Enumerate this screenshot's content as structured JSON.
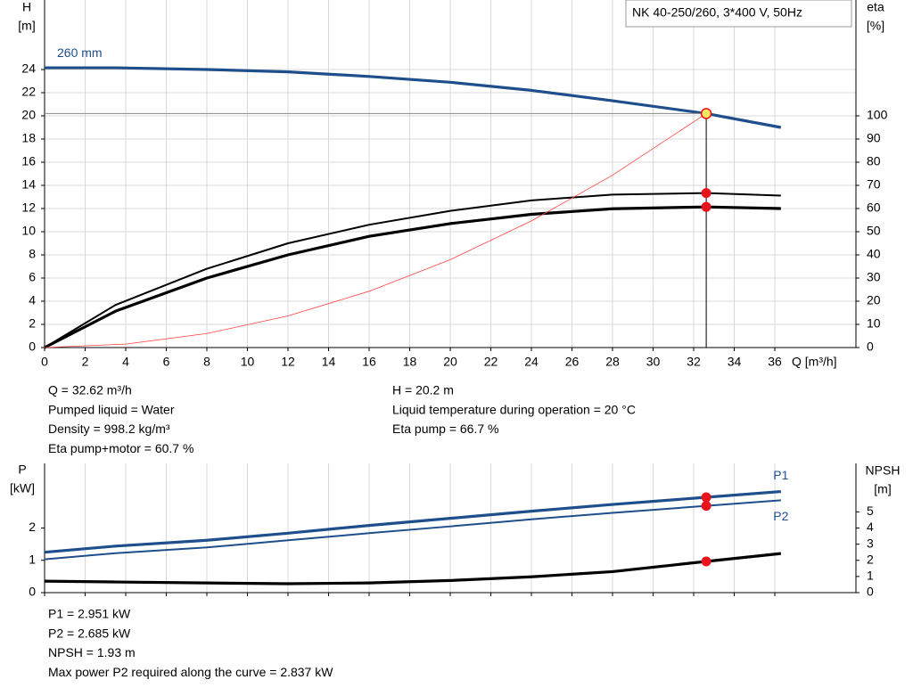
{
  "chart_data": [
    {
      "type": "line",
      "title": "NK 40-250/260, 3*400 V, 50Hz",
      "xlabel": "Q [m³/h]",
      "ylabel": [
        "H",
        "[m]"
      ],
      "y2label": [
        "eta",
        "[%]"
      ],
      "xlim": [
        0,
        40
      ],
      "xticks": [
        0,
        2,
        4,
        6,
        8,
        10,
        12,
        14,
        16,
        18,
        20,
        22,
        24,
        26,
        28,
        30,
        32,
        34,
        36
      ],
      "ylim": [
        0,
        30
      ],
      "yticks": [
        0,
        2,
        4,
        6,
        8,
        10,
        12,
        14,
        16,
        18,
        20,
        22,
        24
      ],
      "y2lim": [
        0,
        150
      ],
      "y2ticks": [
        0,
        10,
        20,
        30,
        40,
        50,
        60,
        70,
        80,
        90,
        100
      ],
      "grid": "both",
      "series": [
        {
          "name": "260 mm",
          "label_position": "start",
          "color": "#1f4e8c",
          "style": "thick",
          "x": [
            0,
            3.5,
            8,
            12,
            16,
            20,
            24,
            28,
            32.62,
            36.3
          ],
          "values": [
            24.15,
            24.15,
            24.0,
            23.8,
            23.4,
            22.9,
            22.2,
            21.3,
            20.2,
            19.0
          ]
        },
        {
          "color": "#000000",
          "style": "medium",
          "axis": "y2",
          "x": [
            0,
            3.5,
            8,
            12,
            16,
            20,
            24,
            28,
            32.62,
            36.3
          ],
          "values": [
            0,
            18.4,
            34,
            45,
            53,
            59,
            63.5,
            66,
            66.7,
            65.6
          ]
        },
        {
          "color": "#000000",
          "style": "thick",
          "axis": "y2",
          "x": [
            0,
            3.5,
            8,
            12,
            16,
            20,
            24,
            28,
            32.62,
            36.3
          ],
          "values": [
            0,
            15.7,
            30,
            40,
            48,
            53.5,
            57.5,
            59.9,
            60.7,
            60.0
          ]
        },
        {
          "color": "#ff4040",
          "style": "thin",
          "x": [
            0,
            4,
            8,
            12,
            16,
            20,
            24,
            28,
            32.62
          ],
          "values": [
            0,
            0.3,
            1.21,
            2.73,
            4.86,
            7.59,
            10.93,
            14.88,
            20.2
          ]
        }
      ],
      "points": [
        {
          "x": 32.62,
          "y": 20.2,
          "color": "#f5e663",
          "dropline": true
        },
        {
          "x": 32.62,
          "y": 66.7,
          "axis": "y2",
          "color": "#e8131b"
        },
        {
          "x": 32.62,
          "y": 60.7,
          "axis": "y2",
          "color": "#e8131b"
        }
      ],
      "info": [
        [
          "Q = 32.62 m³/h",
          "Pumped liquid = Water",
          "Density = 998.2 kg/m³",
          "Eta pump+motor = 60.7 %"
        ],
        [
          "H = 20.2 m",
          "Liquid temperature during operation = 20 °C",
          "Eta pump = 66.7 %"
        ]
      ]
    },
    {
      "type": "line",
      "ylabel": [
        "P",
        "[kW]"
      ],
      "y2label": [
        "NPSH",
        "[m]"
      ],
      "xlim": [
        0,
        40
      ],
      "xticks": [
        0,
        2,
        4,
        6,
        8,
        10,
        12,
        14,
        16,
        18,
        20,
        22,
        24,
        26,
        28,
        30,
        32,
        34,
        36
      ],
      "ylim": [
        0,
        4
      ],
      "yticks": [
        0,
        1,
        2
      ],
      "y2lim": [
        0,
        8
      ],
      "y2ticks": [
        0,
        1,
        2,
        3,
        4,
        5
      ],
      "grid": "x",
      "series": [
        {
          "name": "P1",
          "label_position": "end-above",
          "color": "#1f4e8c",
          "style": "thick",
          "x": [
            0,
            3.5,
            8,
            12,
            16,
            20,
            24,
            28,
            32.62,
            36.3
          ],
          "values": [
            1.25,
            1.44,
            1.62,
            1.84,
            2.08,
            2.3,
            2.52,
            2.73,
            2.951,
            3.13
          ]
        },
        {
          "name": "P2",
          "label_position": "end-below",
          "color": "#1f4e8c",
          "style": "medium",
          "x": [
            0,
            3.5,
            8,
            12,
            16,
            20,
            24,
            28,
            32.62,
            36.3
          ],
          "values": [
            1.03,
            1.22,
            1.4,
            1.62,
            1.84,
            2.05,
            2.27,
            2.47,
            2.685,
            2.86
          ]
        },
        {
          "color": "#000000",
          "style": "thick",
          "axis": "y2",
          "x": [
            0,
            3.5,
            8,
            12,
            16,
            20,
            24,
            28,
            32.62,
            36.3
          ],
          "values": [
            0.71,
            0.66,
            0.6,
            0.55,
            0.6,
            0.75,
            0.98,
            1.3,
            1.93,
            2.42
          ]
        }
      ],
      "points": [
        {
          "x": 32.62,
          "y": 2.951,
          "color": "#e8131b"
        },
        {
          "x": 32.62,
          "y": 2.685,
          "color": "#e8131b"
        },
        {
          "x": 32.62,
          "y": 1.93,
          "axis": "y2",
          "color": "#e8131b"
        }
      ],
      "info": [
        [
          "P1 = 2.951 kW",
          "P2 = 2.685 kW",
          "NPSH = 1.93 m",
          "Max power P2 required along the curve = 2.837 kW"
        ]
      ]
    }
  ]
}
